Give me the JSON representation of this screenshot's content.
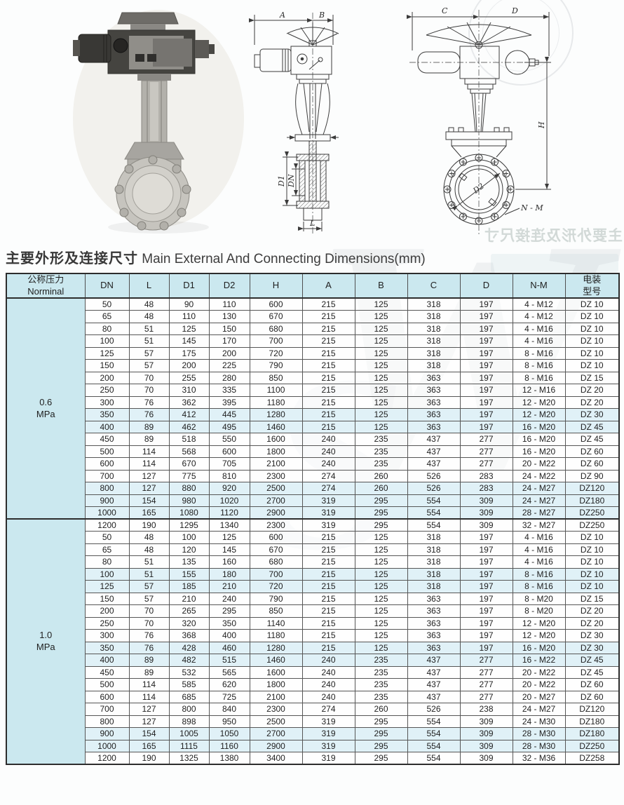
{
  "page": {
    "title_zh": "主要外形及连接尺寸",
    "title_en": " Main External And Connecting Dimensions(mm)",
    "bleed_text": "主要外形及连接尺寸"
  },
  "drawings": {
    "front_view": {
      "dim_a": "A",
      "dim_b": "B",
      "dim_d1": "D1",
      "dim_dn": "DN",
      "dim_l": "L"
    },
    "side_view": {
      "dim_c": "C",
      "dim_d": "D",
      "dim_h": "H",
      "dim_d2": "D2",
      "dim_nm": "N - M"
    }
  },
  "table": {
    "headers": [
      "公称压力\nNorminal",
      "DN",
      "L",
      "D1",
      "D2",
      "H",
      "A",
      "B",
      "C",
      "D",
      "N-M",
      "电装\n型号"
    ],
    "groups": [
      {
        "pressure": "0.6\nMPa",
        "rows": [
          [
            50,
            48,
            90,
            110,
            600,
            215,
            125,
            318,
            197,
            "4 - M12",
            "DZ 10"
          ],
          [
            65,
            48,
            110,
            130,
            670,
            215,
            125,
            318,
            197,
            "4 - M12",
            "DZ 10"
          ],
          [
            80,
            51,
            125,
            150,
            680,
            215,
            125,
            318,
            197,
            "4 - M16",
            "DZ 10"
          ],
          [
            100,
            51,
            145,
            170,
            700,
            215,
            125,
            318,
            197,
            "4 - M16",
            "DZ 10"
          ],
          [
            125,
            57,
            175,
            200,
            720,
            215,
            125,
            318,
            197,
            "8 - M16",
            "DZ 10"
          ],
          [
            150,
            57,
            200,
            225,
            790,
            215,
            125,
            318,
            197,
            "8 - M16",
            "DZ 10"
          ],
          [
            200,
            70,
            255,
            280,
            850,
            215,
            125,
            363,
            197,
            "8 - M16",
            "DZ 15"
          ],
          [
            250,
            70,
            310,
            335,
            1100,
            215,
            125,
            363,
            197,
            "12 - M16",
            "DZ 20"
          ],
          [
            300,
            76,
            362,
            395,
            1180,
            215,
            125,
            363,
            197,
            "12 - M20",
            "DZ 20"
          ],
          [
            350,
            76,
            412,
            445,
            1280,
            215,
            125,
            363,
            197,
            "12 - M20",
            "DZ 30"
          ],
          [
            400,
            89,
            462,
            495,
            1460,
            215,
            125,
            363,
            197,
            "16 - M20",
            "DZ 45"
          ],
          [
            450,
            89,
            518,
            550,
            1600,
            240,
            235,
            437,
            277,
            "16 - M20",
            "DZ 45"
          ],
          [
            500,
            114,
            568,
            600,
            1800,
            240,
            235,
            437,
            277,
            "16 - M20",
            "DZ 60"
          ],
          [
            600,
            114,
            670,
            705,
            2100,
            240,
            235,
            437,
            277,
            "20 - M22",
            "DZ 60"
          ],
          [
            700,
            127,
            775,
            810,
            2300,
            274,
            260,
            526,
            283,
            "24 - M22",
            "DZ 90"
          ],
          [
            800,
            127,
            880,
            920,
            2500,
            274,
            260,
            526,
            283,
            "24 - M27",
            "DZ120"
          ],
          [
            900,
            154,
            980,
            1020,
            2700,
            319,
            295,
            554,
            309,
            "24 - M27",
            "DZ180"
          ],
          [
            1000,
            165,
            1080,
            1120,
            2900,
            319,
            295,
            554,
            309,
            "28 - M27",
            "DZ250"
          ]
        ]
      },
      {
        "pressure": "1.0\nMPa",
        "rows": [
          [
            1200,
            190,
            1295,
            1340,
            2300,
            319,
            295,
            554,
            309,
            "32 - M27",
            "DZ250"
          ],
          [
            50,
            48,
            100,
            125,
            600,
            215,
            125,
            318,
            197,
            "4 - M16",
            "DZ 10"
          ],
          [
            65,
            48,
            120,
            145,
            670,
            215,
            125,
            318,
            197,
            "4 - M16",
            "DZ 10"
          ],
          [
            80,
            51,
            135,
            160,
            680,
            215,
            125,
            318,
            197,
            "4 - M16",
            "DZ 10"
          ],
          [
            100,
            51,
            155,
            180,
            700,
            215,
            125,
            318,
            197,
            "8 - M16",
            "DZ 10"
          ],
          [
            125,
            57,
            185,
            210,
            720,
            215,
            125,
            318,
            197,
            "8 - M16",
            "DZ 10"
          ],
          [
            150,
            57,
            210,
            240,
            790,
            215,
            125,
            363,
            197,
            "8 - M20",
            "DZ 15"
          ],
          [
            200,
            70,
            265,
            295,
            850,
            215,
            125,
            363,
            197,
            "8 - M20",
            "DZ 20"
          ],
          [
            250,
            70,
            320,
            350,
            1140,
            215,
            125,
            363,
            197,
            "12 - M20",
            "DZ 20"
          ],
          [
            300,
            76,
            368,
            400,
            1180,
            215,
            125,
            363,
            197,
            "12 - M20",
            "DZ 30"
          ],
          [
            350,
            76,
            428,
            460,
            1280,
            215,
            125,
            363,
            197,
            "16 - M20",
            "DZ 30"
          ],
          [
            400,
            89,
            482,
            515,
            1460,
            240,
            235,
            437,
            277,
            "16 - M22",
            "DZ 45"
          ],
          [
            450,
            89,
            532,
            565,
            1600,
            240,
            235,
            437,
            277,
            "20 - M22",
            "DZ 45"
          ],
          [
            500,
            114,
            585,
            620,
            1800,
            240,
            235,
            437,
            277,
            "20 - M22",
            "DZ 60"
          ],
          [
            600,
            114,
            685,
            725,
            2100,
            240,
            235,
            437,
            277,
            "20 - M27",
            "DZ 60"
          ],
          [
            700,
            127,
            800,
            840,
            2300,
            274,
            260,
            526,
            238,
            "24 - M27",
            "DZ120"
          ],
          [
            800,
            127,
            898,
            950,
            2500,
            319,
            295,
            554,
            309,
            "24 - M30",
            "DZ180"
          ],
          [
            900,
            154,
            1005,
            1050,
            2700,
            319,
            295,
            554,
            309,
            "28 - M30",
            "DZ180"
          ],
          [
            1000,
            165,
            1115,
            1160,
            2900,
            319,
            295,
            554,
            309,
            "28 - M30",
            "DZ250"
          ],
          [
            1200,
            190,
            1325,
            1380,
            3400,
            319,
            295,
            554,
            309,
            "32 - M36",
            "DZ258"
          ]
        ]
      }
    ]
  }
}
